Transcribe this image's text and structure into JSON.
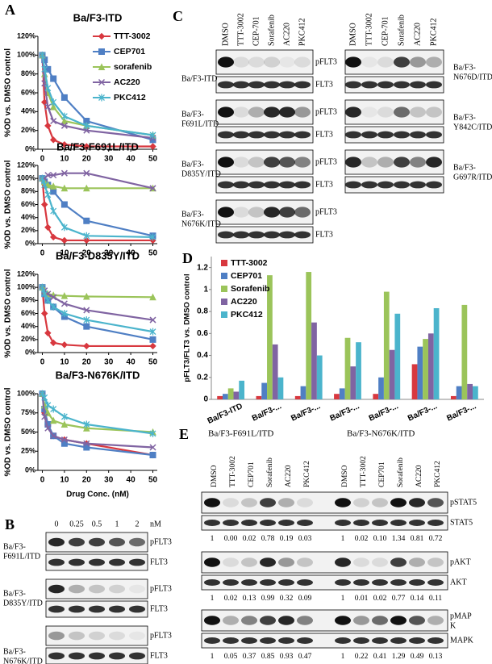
{
  "figure": {
    "panel_labels": [
      "A",
      "B",
      "C",
      "D",
      "E"
    ]
  },
  "chart_data": [
    {
      "type": "line",
      "title": "Ba/F3-ITD",
      "ylabel": "%OD vs. DMSO control",
      "x": [
        0,
        1,
        2.5,
        5,
        10,
        20,
        50
      ],
      "xlim": [
        -2,
        52
      ],
      "xticks": [
        0,
        10,
        20,
        30,
        40,
        50
      ],
      "ylim": [
        0,
        120
      ],
      "yticks": [
        {
          "value": 0,
          "label": "0%"
        },
        {
          "value": 20,
          "label": "20%"
        },
        {
          "value": 40,
          "label": "40%"
        },
        {
          "value": 60,
          "label": "60%"
        },
        {
          "value": 80,
          "label": "80%"
        },
        {
          "value": 100,
          "label": "100%"
        },
        {
          "value": 120,
          "label": "120%"
        }
      ],
      "legend": "upper right",
      "series": [
        {
          "name": "TTT-3002",
          "color": "#d8383f",
          "marker": "diamond",
          "values": [
            100,
            50,
            25,
            10,
            5,
            3,
            3
          ]
        },
        {
          "name": "CEP701",
          "color": "#4f7fc4",
          "marker": "square",
          "values": [
            100,
            95,
            85,
            75,
            55,
            30,
            10
          ]
        },
        {
          "name": "sorafenib",
          "color": "#9bc45a",
          "marker": "triangle",
          "values": [
            100,
            80,
            60,
            45,
            30,
            25,
            15
          ]
        },
        {
          "name": "AC220",
          "color": "#8064a2",
          "marker": "x",
          "values": [
            100,
            70,
            45,
            30,
            25,
            20,
            12
          ]
        },
        {
          "name": "PKC412",
          "color": "#4bb4cc",
          "marker": "star",
          "values": [
            100,
            85,
            65,
            50,
            35,
            25,
            15
          ]
        }
      ]
    },
    {
      "type": "line",
      "title": "Ba/F3-F691L/ITD",
      "ylabel": "%OD vs. DMSO control",
      "x": [
        0,
        1,
        2.5,
        5,
        10,
        20,
        50
      ],
      "xlim": [
        -2,
        52
      ],
      "xticks": [
        0,
        10,
        20,
        30,
        40,
        50
      ],
      "ylim": [
        0,
        120
      ],
      "yticks": [
        {
          "value": 0,
          "label": "0%"
        },
        {
          "value": 20,
          "label": "20%"
        },
        {
          "value": 40,
          "label": "40%"
        },
        {
          "value": 60,
          "label": "60%"
        },
        {
          "value": 80,
          "label": "80%"
        },
        {
          "value": 100,
          "label": "100%"
        },
        {
          "value": 120,
          "label": "120%"
        }
      ],
      "series": [
        {
          "name": "TTT-3002",
          "color": "#d8383f",
          "marker": "diamond",
          "values": [
            100,
            60,
            25,
            10,
            5,
            5,
            5
          ]
        },
        {
          "name": "CEP701",
          "color": "#4f7fc4",
          "marker": "square",
          "values": [
            100,
            95,
            90,
            80,
            60,
            35,
            12
          ]
        },
        {
          "name": "sorafenib",
          "color": "#9bc45a",
          "marker": "triangle",
          "values": [
            100,
            95,
            90,
            88,
            85,
            85,
            85
          ]
        },
        {
          "name": "AC220",
          "color": "#8064a2",
          "marker": "x",
          "values": [
            100,
            100,
            105,
            105,
            108,
            108,
            85
          ]
        },
        {
          "name": "PKC412",
          "color": "#4bb4cc",
          "marker": "star",
          "values": [
            100,
            90,
            75,
            50,
            25,
            12,
            10
          ]
        }
      ]
    },
    {
      "type": "line",
      "title": "Ba/F3-D835Y/ITD",
      "ylabel": "%OD vs. DMSO control",
      "x": [
        0,
        1,
        2.5,
        5,
        10,
        20,
        50
      ],
      "xlim": [
        -2,
        52
      ],
      "xticks": [
        0,
        10,
        20,
        30,
        40,
        50
      ],
      "ylim": [
        0,
        120
      ],
      "yticks": [
        {
          "value": 0,
          "label": "0%"
        },
        {
          "value": 20,
          "label": "20%"
        },
        {
          "value": 40,
          "label": "40%"
        },
        {
          "value": 60,
          "label": "60%"
        },
        {
          "value": 80,
          "label": "80%"
        },
        {
          "value": 100,
          "label": "100%"
        },
        {
          "value": 120,
          "label": "120%"
        }
      ],
      "series": [
        {
          "name": "TTT-3002",
          "color": "#d8383f",
          "marker": "diamond",
          "values": [
            100,
            60,
            30,
            15,
            12,
            10,
            10
          ]
        },
        {
          "name": "CEP701",
          "color": "#4f7fc4",
          "marker": "square",
          "values": [
            100,
            90,
            80,
            70,
            55,
            40,
            20
          ]
        },
        {
          "name": "sorafenib",
          "color": "#9bc45a",
          "marker": "triangle",
          "values": [
            100,
            95,
            90,
            88,
            87,
            86,
            85
          ]
        },
        {
          "name": "AC220",
          "color": "#8064a2",
          "marker": "x",
          "values": [
            100,
            95,
            90,
            85,
            75,
            65,
            50
          ]
        },
        {
          "name": "PKC412",
          "color": "#4bb4cc",
          "marker": "star",
          "values": [
            100,
            90,
            80,
            70,
            60,
            50,
            32
          ]
        }
      ]
    },
    {
      "type": "line",
      "title": "Ba/F3-N676K/ITD",
      "ylabel": "%OD vs. DMSO control",
      "xlabel": "Drug Conc. (nM)",
      "x": [
        0,
        1,
        2.5,
        5,
        10,
        20,
        50
      ],
      "xlim": [
        -2,
        52
      ],
      "xticks": [
        0,
        10,
        20,
        30,
        40,
        50
      ],
      "ylim": [
        0,
        100
      ],
      "yticks": [
        {
          "value": 0,
          "label": "0%"
        },
        {
          "value": 25,
          "label": "25%"
        },
        {
          "value": 50,
          "label": "50%"
        },
        {
          "value": 75,
          "label": "75%"
        },
        {
          "value": 100,
          "label": "100%"
        }
      ],
      "series": [
        {
          "name": "TTT-3002",
          "color": "#d8383f",
          "marker": "diamond",
          "values": [
            100,
            75,
            60,
            45,
            40,
            35,
            20
          ]
        },
        {
          "name": "CEP701",
          "color": "#4f7fc4",
          "marker": "square",
          "values": [
            100,
            80,
            60,
            45,
            35,
            30,
            20
          ]
        },
        {
          "name": "sorafenib",
          "color": "#9bc45a",
          "marker": "triangle",
          "values": [
            100,
            85,
            75,
            65,
            60,
            55,
            50
          ]
        },
        {
          "name": "AC220",
          "color": "#8064a2",
          "marker": "x",
          "values": [
            100,
            70,
            55,
            45,
            40,
            35,
            30
          ]
        },
        {
          "name": "PKC412",
          "color": "#4bb4cc",
          "marker": "star",
          "values": [
            100,
            95,
            85,
            80,
            70,
            60,
            48
          ]
        }
      ]
    },
    {
      "type": "bar",
      "ylabel": "pFLT3/FLT3 vs. DMSO control",
      "categories": [
        "Ba/F3-ITD",
        "Ba/F3-...",
        "Ba/F3-...",
        "Ba/F3-...",
        "Ba/F3-...",
        "Ba/F3-...",
        "Ba/F3-..."
      ],
      "ylim": [
        0,
        1.3
      ],
      "yticks": [
        0,
        0.2,
        0.4,
        0.6,
        0.8,
        1,
        1.2
      ],
      "legend": "upper left",
      "series": [
        {
          "name": "TTT-3002",
          "color": "#d8383f",
          "values": [
            0.03,
            0.03,
            0.03,
            0.05,
            0.05,
            0.32,
            0.03
          ]
        },
        {
          "name": "CEP701",
          "color": "#4f7fc4",
          "values": [
            0.05,
            0.15,
            0.12,
            0.1,
            0.2,
            0.48,
            0.12
          ]
        },
        {
          "name": "Sorafenib",
          "color": "#9bc45a",
          "values": [
            0.1,
            1.13,
            1.16,
            0.56,
            0.98,
            0.55,
            0.86
          ]
        },
        {
          "name": "AC220",
          "color": "#8064a2",
          "values": [
            0.07,
            0.5,
            0.7,
            0.3,
            0.45,
            0.6,
            0.14
          ]
        },
        {
          "name": "PKC412",
          "color": "#4bb4cc",
          "values": [
            0.17,
            0.2,
            0.4,
            0.52,
            0.78,
            0.83,
            0.12
          ]
        }
      ]
    }
  ],
  "panel_b": {
    "lanes": [
      "0",
      "0.25",
      "0.5",
      "1",
      "2"
    ],
    "unit": "nM",
    "blots": [
      {
        "sample": [
          "Ba/F3-",
          "F691L/ITD"
        ],
        "rows": [
          "pFLT3",
          "FLT3"
        ]
      },
      {
        "sample": [
          "Ba/F3-",
          "D835Y/ITD"
        ],
        "rows": [
          "pFLT3",
          "FLT3"
        ]
      },
      {
        "sample": [
          "Ba/F3-",
          "N676K/ITD"
        ],
        "rows": [
          "pFLT3",
          "FLT3"
        ]
      }
    ]
  },
  "panel_c": {
    "lanes": [
      "DMSO",
      "TTT-3002",
      "CEP-701",
      "Sorafenib",
      "AC220",
      "PKC412"
    ],
    "left": [
      {
        "sample": [
          "Ba/F3-ITD"
        ],
        "rows": [
          "pFLT3",
          "FLT3"
        ]
      },
      {
        "sample": [
          "Ba/F3-",
          "F691L/ITD"
        ],
        "rows": [
          "pFLT3",
          "FLT3"
        ]
      },
      {
        "sample": [
          "Ba/F3-",
          "D835Y/ITD"
        ],
        "rows": [
          "pFLT3",
          "FLT3"
        ]
      },
      {
        "sample": [
          "Ba/F3-",
          "N676K/ITD"
        ],
        "rows": [
          "pFLT3",
          "FLT3"
        ]
      }
    ],
    "right": [
      {
        "sample": [
          "Ba/F3-",
          "N676D/ITD"
        ]
      },
      {
        "sample": [
          "Ba/F3-",
          "Y842C/ITD"
        ]
      },
      {
        "sample": [
          "Ba/F3-",
          "G697R/ITD"
        ]
      }
    ]
  },
  "panel_e": {
    "groups": [
      "Ba/F3-F691L/ITD",
      "Ba/F3-N676K/ITD"
    ],
    "lanes": [
      "DMSO",
      "TTT-3002",
      "CEP701",
      "Sorafenib",
      "AC220",
      "PKC412"
    ],
    "blocks": [
      {
        "rows": [
          [
            "pSTAT5"
          ],
          [
            "STAT5"
          ]
        ],
        "quant": [
          [
            "1",
            "0.00",
            "0.02",
            "0.78",
            "0.19",
            "0.03"
          ],
          [
            "1",
            "0.02",
            "0.10",
            "1.34",
            "0.81",
            "0.72"
          ]
        ]
      },
      {
        "rows": [
          [
            "pAKT"
          ],
          [
            "AKT"
          ]
        ],
        "quant": [
          [
            "1",
            "0.02",
            "0.13",
            "0.99",
            "0.32",
            "0.09"
          ],
          [
            "1",
            "0.01",
            "0.02",
            "0.77",
            "0.14",
            "0.11"
          ]
        ]
      },
      {
        "rows": [
          [
            "pMAP",
            "K"
          ],
          [
            "MAPK"
          ]
        ],
        "quant": [
          [
            "1",
            "0.05",
            "0.37",
            "0.85",
            "0.93",
            "0.47"
          ],
          [
            "1",
            "0.22",
            "0.41",
            "1.29",
            "0.49",
            "0.13"
          ]
        ]
      }
    ]
  }
}
